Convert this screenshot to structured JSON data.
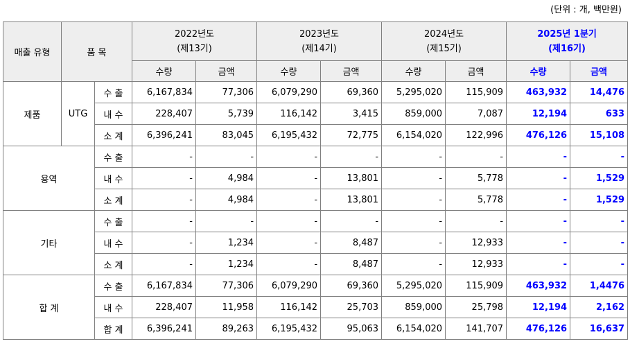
{
  "unit_note": "(단위 : 개, 백만원)",
  "headers": {
    "type": "매출 유형",
    "item": "품 목",
    "qty": "수량",
    "amount": "금액",
    "years": [
      {
        "year": "2022년도",
        "term": "(제13기)"
      },
      {
        "year": "2023년도",
        "term": "(제14기)"
      },
      {
        "year": "2024년도",
        "term": "(제15기)"
      },
      {
        "year": "2025년 1분기",
        "term": "(제16기)"
      }
    ]
  },
  "groups": [
    {
      "type": "제품",
      "item": "UTG",
      "rows": [
        {
          "label": "수 출",
          "values": [
            "6,167,834",
            "77,306",
            "6,079,290",
            "69,360",
            "5,295,020",
            "115,909",
            "463,932",
            "14,476"
          ]
        },
        {
          "label": "내 수",
          "values": [
            "228,407",
            "5,739",
            "116,142",
            "3,415",
            "859,000",
            "7,087",
            "12,194",
            "633"
          ]
        },
        {
          "label": "소 계",
          "values": [
            "6,396,241",
            "83,045",
            "6,195,432",
            "72,775",
            "6,154,020",
            "122,996",
            "476,126",
            "15,108"
          ]
        }
      ]
    },
    {
      "type": "용역",
      "item": "",
      "rows": [
        {
          "label": "수 출",
          "values": [
            "-",
            "-",
            "-",
            "-",
            "-",
            "-",
            "-",
            "-"
          ]
        },
        {
          "label": "내 수",
          "values": [
            "-",
            "4,984",
            "-",
            "13,801",
            "-",
            "5,778",
            "-",
            "1,529"
          ]
        },
        {
          "label": "소 계",
          "values": [
            "-",
            "4,984",
            "-",
            "13,801",
            "-",
            "5,778",
            "-",
            "1,529"
          ]
        }
      ]
    },
    {
      "type": "기타",
      "item": "",
      "rows": [
        {
          "label": "수 출",
          "values": [
            "-",
            "-",
            "-",
            "-",
            "-",
            "-",
            "-",
            "-"
          ]
        },
        {
          "label": "내 수",
          "values": [
            "-",
            "1,234",
            "-",
            "8,487",
            "-",
            "12,933",
            "-",
            "-"
          ]
        },
        {
          "label": "소 계",
          "values": [
            "-",
            "1,234",
            "-",
            "8,487",
            "-",
            "12,933",
            "-",
            "-"
          ]
        }
      ]
    },
    {
      "type": "합 계",
      "item": "",
      "rows": [
        {
          "label": "수 출",
          "values": [
            "6,167,834",
            "77,306",
            "6,079,290",
            "69,360",
            "5,295,020",
            "115,909",
            "463,932",
            "1,4476"
          ]
        },
        {
          "label": "내 수",
          "values": [
            "228,407",
            "11,958",
            "116,142",
            "25,703",
            "859,000",
            "25,798",
            "12,194",
            "2,162"
          ]
        },
        {
          "label": "합 계",
          "values": [
            "6,396,241",
            "89,263",
            "6,195,432",
            "95,063",
            "6,154,020",
            "141,707",
            "476,126",
            "16,637"
          ]
        }
      ]
    }
  ],
  "colors": {
    "highlight": "#0000ff",
    "header_bg": "#eeeeee",
    "border": "#7f7f7f"
  }
}
